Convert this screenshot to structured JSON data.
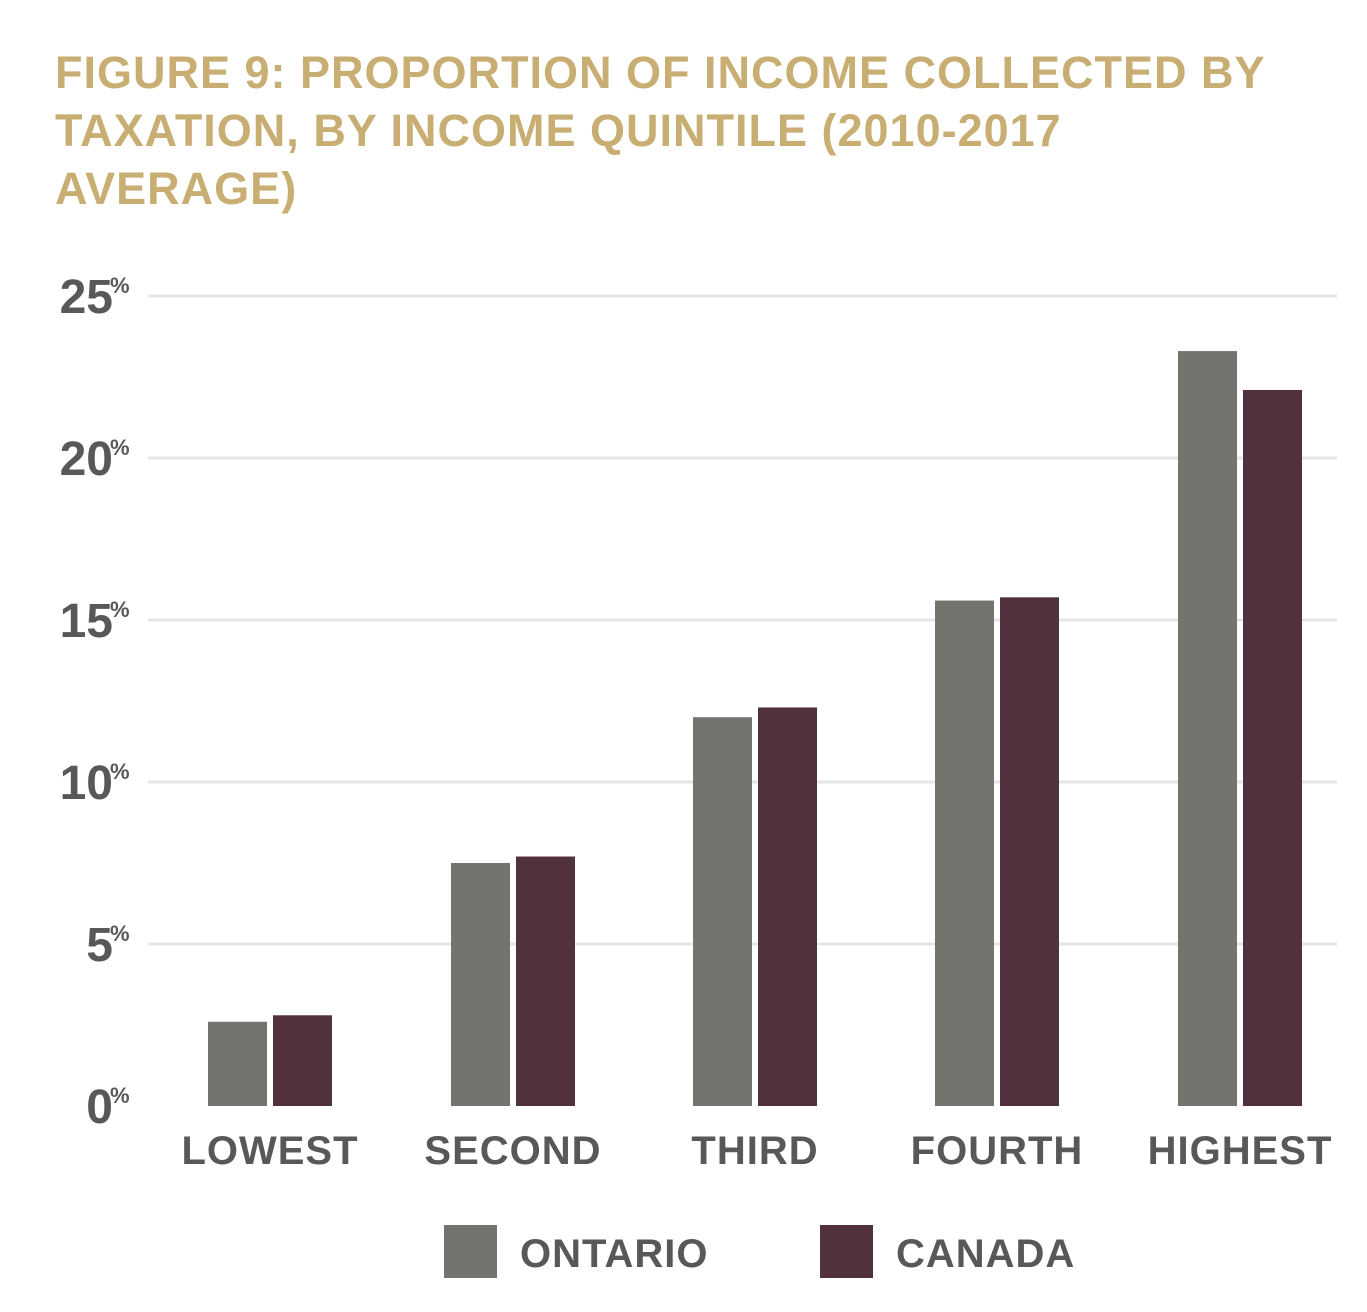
{
  "chart_data": {
    "type": "bar",
    "title": "FIGURE 9: PROPORTION OF INCOME COLLECTED BY TAXATION, BY INCOME QUINTILE (2010-2017 AVERAGE)",
    "xlabel": "",
    "ylabel": "",
    "ylim": [
      0,
      25
    ],
    "yticks": [
      {
        "value": 0,
        "label": "0",
        "suffix": "%"
      },
      {
        "value": 5,
        "label": "5",
        "suffix": "%"
      },
      {
        "value": 10,
        "label": "10",
        "suffix": "%"
      },
      {
        "value": 15,
        "label": "15",
        "suffix": "%"
      },
      {
        "value": 20,
        "label": "20",
        "suffix": "%"
      },
      {
        "value": 25,
        "label": "25",
        "suffix": "%"
      }
    ],
    "grid": true,
    "legend_position": "bottom-center",
    "categories": [
      "LOWEST",
      "SECOND",
      "THIRD",
      "FOURTH",
      "HIGHEST"
    ],
    "series": [
      {
        "name": "ONTARIO",
        "color": "#72746d",
        "values": [
          2.6,
          7.5,
          12.0,
          15.6,
          23.3
        ]
      },
      {
        "name": "CANADA",
        "color": "#51313d",
        "values": [
          2.8,
          7.7,
          12.3,
          15.7,
          22.1
        ]
      }
    ]
  }
}
